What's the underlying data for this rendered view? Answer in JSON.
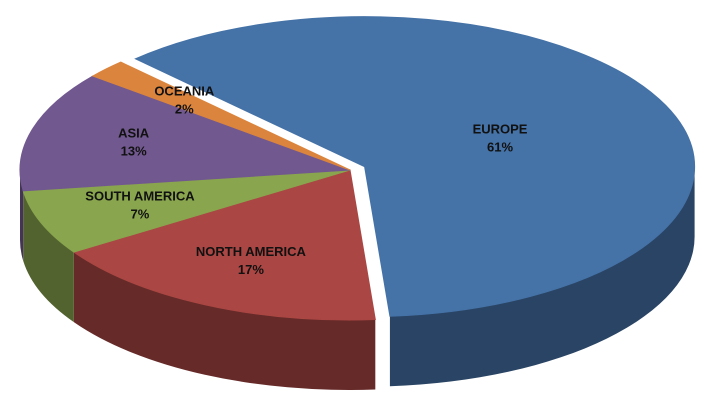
{
  "chart_data": {
    "type": "pie",
    "categories": [
      "EUROPE",
      "NORTH AMERICA",
      "SOUTH AMERICA",
      "ASIA",
      "OCEANIA"
    ],
    "values": [
      61,
      17,
      7,
      13,
      2
    ],
    "value_labels": [
      "61%",
      "17%",
      "7%",
      "13%",
      "2%"
    ],
    "colors": [
      "#4572a7",
      "#aa4643",
      "#89a54e",
      "#71588f",
      "#db843d"
    ]
  }
}
